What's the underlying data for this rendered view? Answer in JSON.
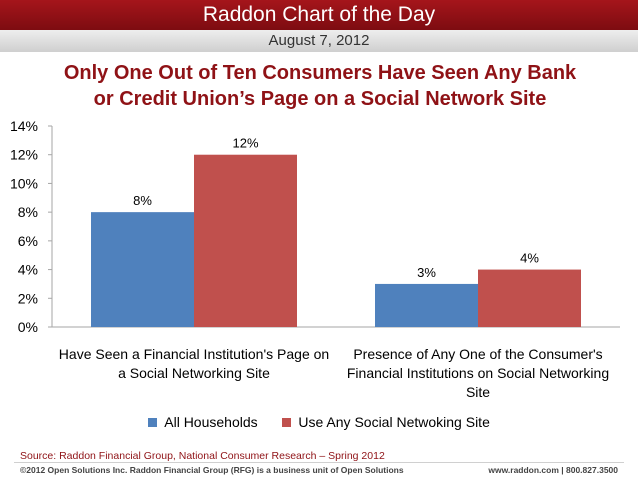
{
  "banner": {
    "title": "Raddon Chart of the Day"
  },
  "date": "August 7, 2012",
  "headline": {
    "line1": "Only One Out of Ten Consumers Have Seen Any Bank",
    "line2": "or Credit Union’s Page on a Social Network Site"
  },
  "chart_data": {
    "type": "bar",
    "categories": [
      "Have Seen a Financial Institution's Page on a Social Networking Site",
      "Presence of Any One of the Consumer's Financial Institutions on Social Networking Site"
    ],
    "series": [
      {
        "name": "All Households",
        "values": [
          8,
          3
        ],
        "labels": [
          "8%",
          "3%"
        ],
        "color": "#4f81bd"
      },
      {
        "name": "Use Any Social Netwoking Site",
        "values": [
          12,
          4
        ],
        "labels": [
          "12%",
          "4%"
        ],
        "color": "#c0504d"
      }
    ],
    "yticks": [
      "0%",
      "2%",
      "4%",
      "6%",
      "8%",
      "10%",
      "12%",
      "14%"
    ],
    "ylim": [
      0,
      14
    ],
    "grid": false,
    "legend": "bottom"
  },
  "source": "Source: Raddon Financial Group, National Consumer Research – Spring 2012",
  "footer": {
    "copyright": "©2012 Open Solutions Inc.  Raddon Financial Group (RFG) is a business unit of Open Solutions",
    "contact": "www.raddon.com  |  800.827.3500"
  }
}
